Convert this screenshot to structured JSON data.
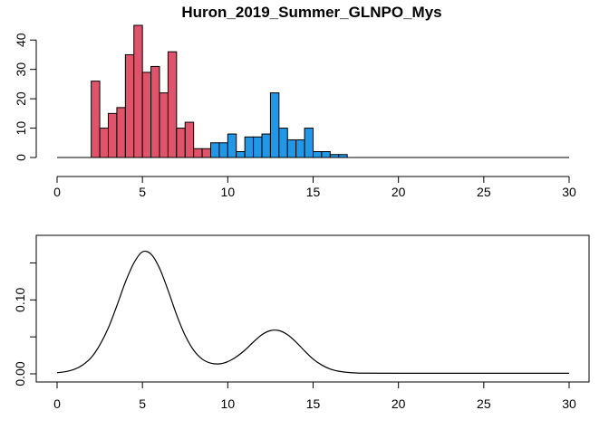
{
  "chart_data": [
    {
      "type": "bar",
      "title": "Huron_2019_Summer_GLNPO_Mys",
      "xlabel": "",
      "ylabel": "",
      "xlim": [
        0,
        30
      ],
      "ylim": [
        0,
        45
      ],
      "x_ticks": [
        "0",
        "5",
        "10",
        "15",
        "20",
        "25",
        "30"
      ],
      "y_ticks": [
        "0",
        "10",
        "20",
        "30",
        "40"
      ],
      "bin_width": 0.5,
      "grid": false,
      "legend": "none",
      "colors": {
        "group1": "#DF536B",
        "group2": "#2297E6",
        "outline": "#000000"
      },
      "series": [
        {
          "color_key": "group1",
          "bins": [
            {
              "x": 2.0,
              "count": 26
            },
            {
              "x": 2.5,
              "count": 10
            },
            {
              "x": 3.0,
              "count": 15
            },
            {
              "x": 3.5,
              "count": 17
            },
            {
              "x": 4.0,
              "count": 35
            },
            {
              "x": 4.5,
              "count": 45
            },
            {
              "x": 5.0,
              "count": 29
            },
            {
              "x": 5.5,
              "count": 31
            },
            {
              "x": 6.0,
              "count": 22
            },
            {
              "x": 6.5,
              "count": 36
            },
            {
              "x": 7.0,
              "count": 10
            },
            {
              "x": 7.5,
              "count": 12
            },
            {
              "x": 8.0,
              "count": 3
            },
            {
              "x": 8.5,
              "count": 3
            },
            {
              "x": 9.0,
              "count": 4
            }
          ]
        },
        {
          "color_key": "group2",
          "bins": [
            {
              "x": 9.0,
              "count": 5
            },
            {
              "x": 9.5,
              "count": 5
            },
            {
              "x": 10.0,
              "count": 8
            },
            {
              "x": 10.5,
              "count": 2
            },
            {
              "x": 11.0,
              "count": 7
            },
            {
              "x": 11.5,
              "count": 7
            },
            {
              "x": 12.0,
              "count": 8
            },
            {
              "x": 12.5,
              "count": 22
            },
            {
              "x": 13.0,
              "count": 10
            },
            {
              "x": 13.5,
              "count": 6
            },
            {
              "x": 14.0,
              "count": 6
            },
            {
              "x": 14.5,
              "count": 10
            },
            {
              "x": 15.0,
              "count": 2
            },
            {
              "x": 15.5,
              "count": 2
            },
            {
              "x": 16.0,
              "count": 1
            },
            {
              "x": 16.5,
              "count": 1
            }
          ]
        }
      ]
    },
    {
      "type": "line",
      "title": "",
      "xlabel": "",
      "ylabel": "",
      "xlim": [
        0,
        30
      ],
      "ylim": [
        0,
        0.18
      ],
      "x_ticks": [
        "0",
        "5",
        "10",
        "15",
        "20",
        "25",
        "30"
      ],
      "y_ticks": [
        "0.00",
        "0.10"
      ],
      "grid": false,
      "legend": "none",
      "line_color": "#000000",
      "x": [
        0,
        0.5,
        1,
        1.5,
        2,
        2.5,
        3,
        3.5,
        4,
        4.5,
        5,
        5.5,
        6,
        6.5,
        7,
        7.5,
        8,
        8.5,
        9,
        9.5,
        10,
        10.5,
        11,
        11.5,
        12,
        12.5,
        13,
        13.5,
        14,
        14.5,
        15,
        15.5,
        16,
        16.5,
        17,
        17.5,
        18,
        20,
        25,
        30
      ],
      "y": [
        0.0015,
        0.003,
        0.006,
        0.012,
        0.022,
        0.039,
        0.062,
        0.092,
        0.124,
        0.15,
        0.165,
        0.162,
        0.143,
        0.113,
        0.08,
        0.052,
        0.032,
        0.02,
        0.0145,
        0.0135,
        0.0165,
        0.023,
        0.032,
        0.043,
        0.053,
        0.0585,
        0.0585,
        0.053,
        0.043,
        0.031,
        0.02,
        0.012,
        0.0065,
        0.0035,
        0.002,
        0.0012,
        0.0009,
        0.0008,
        0.0008,
        0.0008
      ]
    }
  ]
}
